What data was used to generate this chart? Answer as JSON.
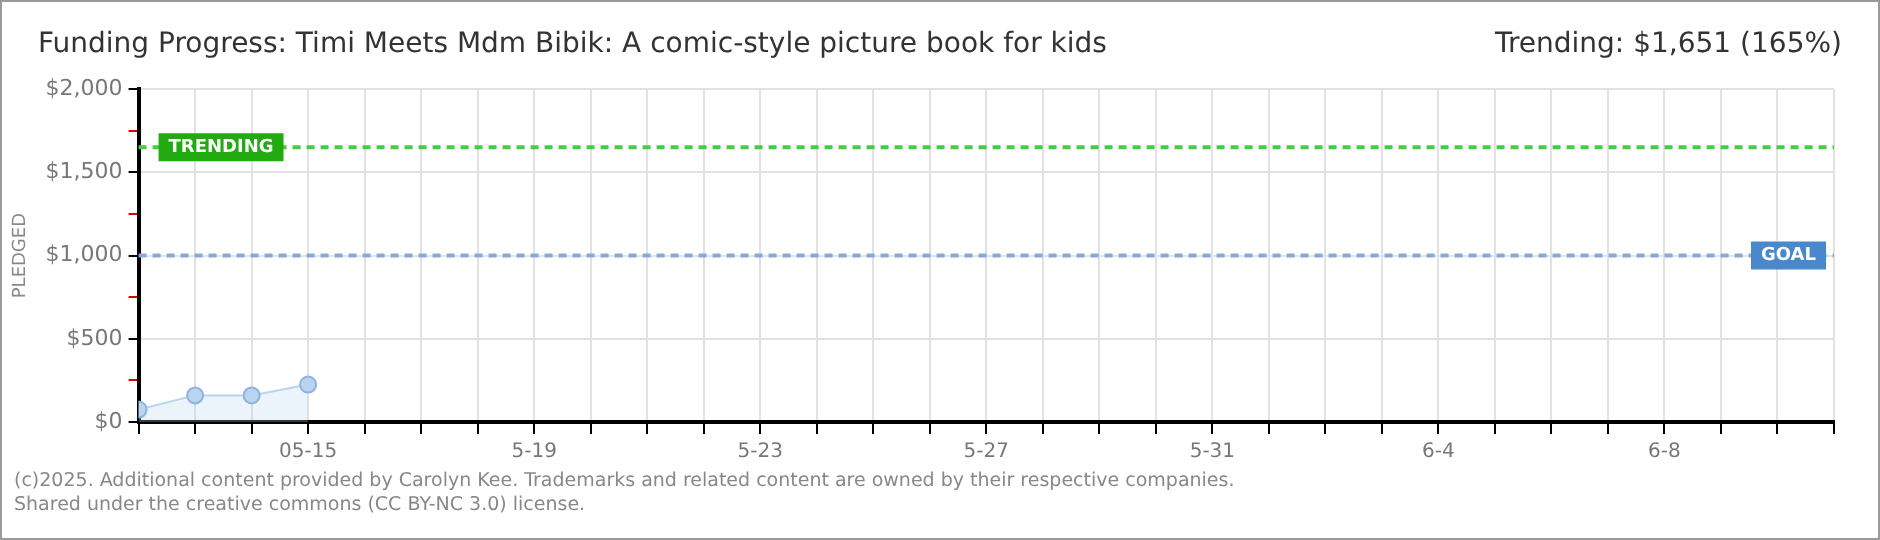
{
  "chart_data": {
    "type": "area",
    "title": "Funding Progress: Timi Meets Mdm Bibik: A comic-style picture book for kids",
    "subtitle": "Trending: $1,651 (165%)",
    "ylabel": "PLEDGED",
    "x": [
      "2025-05-12",
      "2025-05-13",
      "2025-05-14",
      "2025-05-15"
    ],
    "series": [
      {
        "color": "#b8d4f0",
        "values": [
          75,
          160,
          160,
          225
        ]
      }
    ],
    "xlim": [
      "2025-05-12",
      "2025-06-11"
    ],
    "xticks": [
      {
        "value": "2025-05-12",
        "label": null
      },
      {
        "value": "2025-05-13",
        "label": null
      },
      {
        "value": "2025-05-14",
        "label": null
      },
      {
        "value": "2025-05-15",
        "label": "05-15"
      },
      {
        "value": "2025-05-16",
        "label": null
      },
      {
        "value": "2025-05-17",
        "label": null
      },
      {
        "value": "2025-05-18",
        "label": null
      },
      {
        "value": "2025-05-19",
        "label": "5-19"
      },
      {
        "value": "2025-05-20",
        "label": null
      },
      {
        "value": "2025-05-21",
        "label": null
      },
      {
        "value": "2025-05-22",
        "label": null
      },
      {
        "value": "2025-05-23",
        "label": "5-23"
      },
      {
        "value": "2025-05-24",
        "label": null
      },
      {
        "value": "2025-05-25",
        "label": null
      },
      {
        "value": "2025-05-26",
        "label": null
      },
      {
        "value": "2025-05-27",
        "label": "5-27"
      },
      {
        "value": "2025-05-28",
        "label": null
      },
      {
        "value": "2025-05-29",
        "label": null
      },
      {
        "value": "2025-05-30",
        "label": null
      },
      {
        "value": "2025-05-31",
        "label": "5-31"
      },
      {
        "value": "2025-06-01",
        "label": null
      },
      {
        "value": "2025-06-02",
        "label": null
      },
      {
        "value": "2025-06-03",
        "label": null
      },
      {
        "value": "2025-06-04",
        "label": "6-4"
      },
      {
        "value": "2025-06-05",
        "label": null
      },
      {
        "value": "2025-06-06",
        "label": null
      },
      {
        "value": "2025-06-07",
        "label": null
      },
      {
        "value": "2025-06-08",
        "label": "6-8"
      },
      {
        "value": "2025-06-09",
        "label": null
      },
      {
        "value": "2025-06-10",
        "label": null
      },
      {
        "value": "2025-06-11",
        "label": null
      }
    ],
    "ylim": [
      0,
      2000
    ],
    "yticks": [
      {
        "value": 0,
        "label": "$0"
      },
      {
        "value": 250,
        "label": null
      },
      {
        "value": 500,
        "label": "$500"
      },
      {
        "value": 750,
        "label": null
      },
      {
        "value": 1000,
        "label": "$1,000"
      },
      {
        "value": 1250,
        "label": null
      },
      {
        "value": 1500,
        "label": "$1,500"
      },
      {
        "value": 1750,
        "label": null
      },
      {
        "value": 2000,
        "label": "$2,000"
      }
    ],
    "ref_lines": [
      {
        "axis": "y",
        "value": 1651,
        "label": "TRENDING",
        "color": "#44cc44",
        "line_style": "dashed"
      },
      {
        "axis": "y",
        "value": 1000,
        "label": "GOAL",
        "color": "#88aad8",
        "line_style": "dashed"
      }
    ],
    "grid": true,
    "legend": false,
    "marker": "circle",
    "line_style": "solid",
    "annotations": [
      "(c)2025. Additional content provided by Carolyn Kee. Trademarks and related content are owned by their respective companies.",
      "Shared under the creative commons (CC BY-NC 3.0) license."
    ]
  }
}
